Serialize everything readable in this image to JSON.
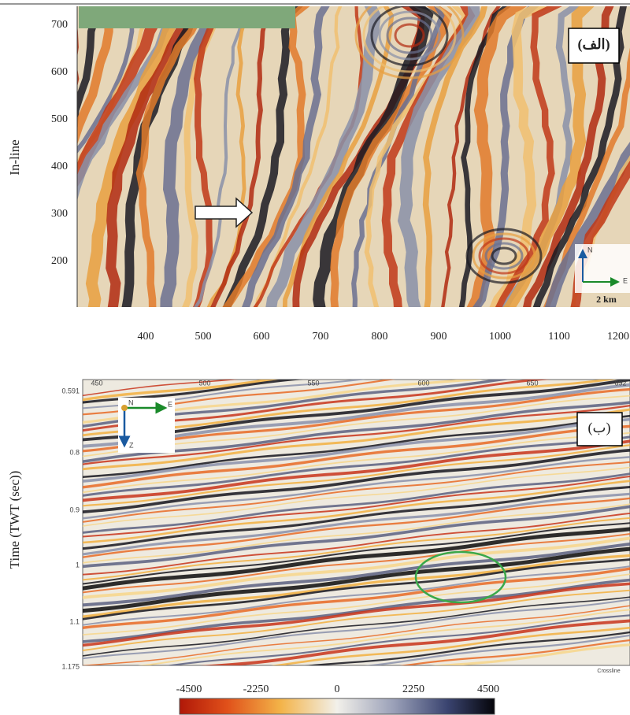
{
  "top_panel": {
    "label": "(الف)",
    "y_axis_title": "In-line",
    "yticks": [
      "700",
      "600",
      "500",
      "400",
      "300",
      "200"
    ],
    "xticks": [
      "400",
      "500",
      "600",
      "700",
      "800",
      "900",
      "1000",
      "1100",
      "1200"
    ],
    "compass": {
      "north": "N",
      "east": "E",
      "scale": "2 km"
    }
  },
  "bottom_panel": {
    "label": "(ب)",
    "y_axis_title": "Time (TWT (sec))",
    "yticks": [
      "0.591",
      "0.8",
      "0.9",
      "1",
      "1.1",
      "1.175"
    ],
    "top_ticks": [
      "450",
      "500",
      "550",
      "600",
      "650",
      "692"
    ],
    "axis_note": "Crossline",
    "compass": {
      "north": "N",
      "east": "E",
      "down": "Z"
    }
  },
  "colorbar": {
    "ticks": [
      "-4500",
      "-2250",
      "0",
      "2250",
      "4500"
    ]
  }
}
